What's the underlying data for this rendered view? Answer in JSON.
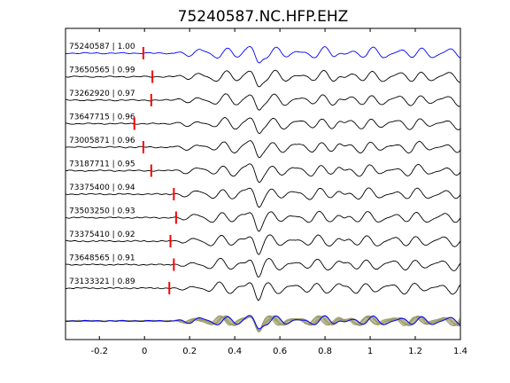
{
  "figure": {
    "title": "75240587.NC.HFP.EHZ"
  },
  "chart_data": {
    "type": "line",
    "title": "75240587.NC.HFP.EHZ",
    "xlabel": "",
    "ylabel": "",
    "xlim": [
      -0.35,
      1.4
    ],
    "xticks": [
      -0.2,
      0,
      0.2,
      0.4,
      0.6,
      0.8,
      1,
      1.2,
      1.4
    ],
    "xtick_labels": [
      "-0.2",
      "0",
      "0.2",
      "0.4",
      "0.6",
      "0.8",
      "1",
      "1.2",
      "1.4"
    ],
    "grid": false,
    "colors": {
      "reference_trace": "#0000ff",
      "trace": "#000000",
      "pick_marker": "#ff0000",
      "stack_overlay": "#9c9c6a"
    },
    "series": [
      {
        "name": "75240587 | 1.00",
        "pick_time": -0.005
      },
      {
        "name": "73650565 | 0.99",
        "pick_time": 0.035
      },
      {
        "name": "73262920 | 0.97",
        "pick_time": 0.03
      },
      {
        "name": "73647715 | 0.96",
        "pick_time": -0.045
      },
      {
        "name": "73005871 | 0.96",
        "pick_time": -0.005
      },
      {
        "name": "73187711 | 0.95",
        "pick_time": 0.03
      },
      {
        "name": "73375400 | 0.94",
        "pick_time": 0.13
      },
      {
        "name": "73503250 | 0.93",
        "pick_time": 0.14
      },
      {
        "name": "73375410 | 0.92",
        "pick_time": 0.115
      },
      {
        "name": "73648565 | 0.91",
        "pick_time": 0.13
      },
      {
        "name": "73133321 | 0.89",
        "pick_time": 0.11
      }
    ]
  }
}
